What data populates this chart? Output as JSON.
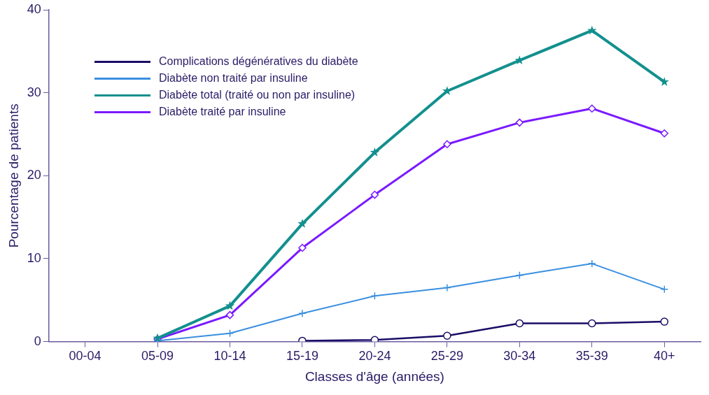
{
  "chart_data": {
    "type": "line",
    "xlabel": "Classes d'âge (années)",
    "ylabel": "Pourcentage de patients",
    "categories": [
      "00-04",
      "05-09",
      "10-14",
      "15-19",
      "20-24",
      "25-29",
      "30-34",
      "35-39",
      "40+"
    ],
    "ylim": [
      0,
      40
    ],
    "yticks": [
      0,
      10,
      20,
      30,
      40
    ],
    "grid": false,
    "legend": "top left",
    "series": [
      {
        "name": "Complications dégénératives du diabète",
        "color": "#1a0d66",
        "marker": "circle",
        "values": [
          null,
          null,
          null,
          0.1,
          0.2,
          0.7,
          2.2,
          2.2,
          2.4
        ]
      },
      {
        "name": "Diabète non traité par insuline",
        "color": "#3a8fe0",
        "marker": "cross",
        "values": [
          null,
          0.1,
          1.0,
          3.4,
          5.5,
          6.5,
          8.0,
          9.4,
          6.3
        ]
      },
      {
        "name": "Diabète total (traité ou non par insuline)",
        "color": "#12908e",
        "marker": "star",
        "values": [
          null,
          0.4,
          4.3,
          14.2,
          22.8,
          30.2,
          33.9,
          37.5,
          31.3
        ]
      },
      {
        "name": "Diabète traité par insuline",
        "color": "#7a1aff",
        "marker": "diamond",
        "values": [
          null,
          0.3,
          3.2,
          11.3,
          17.7,
          23.8,
          26.4,
          28.1,
          25.1
        ]
      }
    ]
  }
}
